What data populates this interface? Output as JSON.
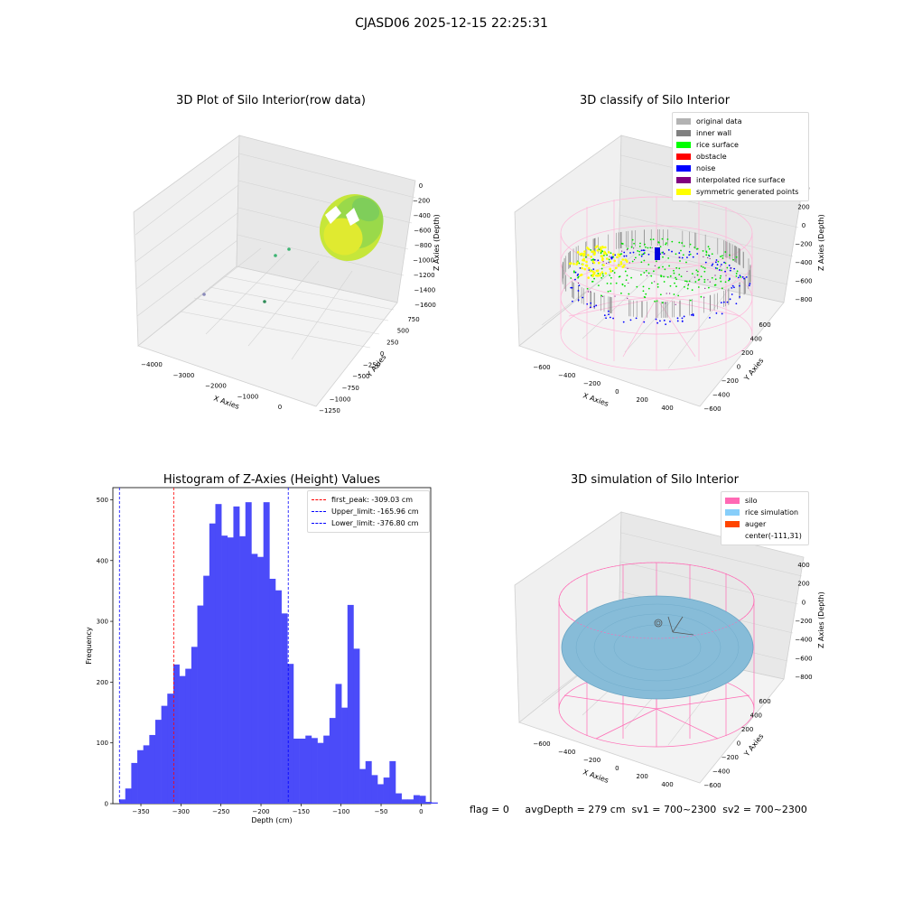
{
  "suptitle": "CJASD06 2025-12-15 22:25:31",
  "footer": "flag = 0     avgDepth = 279 cm  sv1 = 700~2300  sv2 = 700~2300",
  "colors": {
    "histogram": "#4b4bf9",
    "peak_line": "#ff0000",
    "limit_line": "#0000ff",
    "raw_surface": "#b0e63a",
    "silo": "#ff69b4",
    "rice": "#87cefa",
    "auger": "#ff4500"
  },
  "chart_data": [
    {
      "type": "scatter",
      "subtype": "3d",
      "title": "3D Plot of Silo Interior(row data)",
      "xlabel": "X Axies",
      "ylabel": "Y Axies",
      "zlabel": "Z Axies (Depth)",
      "xticks": [
        "−4000",
        "−3000",
        "−2000",
        "−1000",
        "0"
      ],
      "yticks": [
        "750",
        "500",
        "250",
        "0",
        "−250",
        "−500",
        "−750",
        "−1000",
        "−1250"
      ],
      "zticks": [
        "0",
        "−200",
        "−400",
        "−600",
        "−800",
        "−1000",
        "−1200",
        "−1400",
        "−1600"
      ],
      "grid": true
    },
    {
      "type": "scatter",
      "subtype": "3d",
      "title": "3D classify of Silo Interior",
      "xlabel": "X Axies",
      "ylabel": "Y Axies",
      "zlabel": "Z Axies (Depth)",
      "xticks": [
        "−600",
        "−400",
        "−200",
        "0",
        "200",
        "400"
      ],
      "yticks": [
        "600",
        "400",
        "200",
        "0",
        "−200",
        "−400",
        "−600"
      ],
      "zticks": [
        "400",
        "200",
        "0",
        "−200",
        "−400",
        "−600",
        "−800"
      ],
      "grid": true,
      "legend_position": "top-right",
      "legend": [
        {
          "label": "original data",
          "color": "#b3b3b3"
        },
        {
          "label": "inner wall",
          "color": "#808080"
        },
        {
          "label": "rice surface",
          "color": "#00ff00"
        },
        {
          "label": "obstacle",
          "color": "#ff0000"
        },
        {
          "label": "noise",
          "color": "#0000ff"
        },
        {
          "label": "interpolated rice surface",
          "color": "#800080"
        },
        {
          "label": "symmetric generated points",
          "color": "#ffff00"
        }
      ]
    },
    {
      "type": "bar",
      "subtype": "histogram",
      "title": "Histogram of Z-Axies (Height) Values",
      "xlabel": "Depth (cm)",
      "ylabel": "Frequency",
      "xlim": [
        -385,
        12
      ],
      "ylim": [
        0,
        520
      ],
      "xticks": [
        -350,
        -300,
        -250,
        -200,
        -150,
        -100,
        -50,
        0
      ],
      "yticks": [
        0,
        100,
        200,
        300,
        400,
        500
      ],
      "bin_start": -377,
      "bin_width": 7.5,
      "values": [
        7,
        25,
        67,
        88,
        96,
        113,
        138,
        161,
        181,
        229,
        210,
        222,
        258,
        326,
        375,
        461,
        493,
        441,
        438,
        489,
        440,
        496,
        411,
        406,
        496,
        370,
        351,
        313,
        230,
        107,
        107,
        112,
        108,
        100,
        112,
        141,
        197,
        158,
        327,
        255,
        57,
        70,
        47,
        32,
        43,
        70,
        17,
        7,
        7,
        14,
        13,
        3,
        2
      ],
      "lines": [
        {
          "label": "first_peak: -309.03 cm",
          "x": -309.03,
          "color": "#ff0000"
        },
        {
          "label": "Upper_limit: -165.96 cm",
          "x": -165.96,
          "color": "#0000ff"
        },
        {
          "label": "Lower_limit: -376.80 cm",
          "x": -376.8,
          "color": "#0000ff"
        }
      ],
      "legend_position": "top-right",
      "grid": false
    },
    {
      "type": "scatter",
      "subtype": "3d",
      "title": "3D simulation of Silo Interior",
      "xlabel": "X Axies",
      "ylabel": "Y Axies",
      "zlabel": "Z Axies (Depth)",
      "xticks": [
        "−600",
        "−400",
        "−200",
        "0",
        "200",
        "400"
      ],
      "yticks": [
        "600",
        "400",
        "200",
        "0",
        "−200",
        "−400",
        "−600"
      ],
      "zticks": [
        "400",
        "200",
        "0",
        "−200",
        "−400",
        "−600",
        "−800"
      ],
      "grid": true,
      "legend_position": "top-right",
      "legend": [
        {
          "label": "silo",
          "color": "#ff69b4"
        },
        {
          "label": "rice simulation",
          "color": "#87cefa"
        },
        {
          "label": "auger",
          "color": "#ff4500"
        },
        {
          "label": "center(-111,31)",
          "color": "#ffffff"
        }
      ]
    }
  ]
}
